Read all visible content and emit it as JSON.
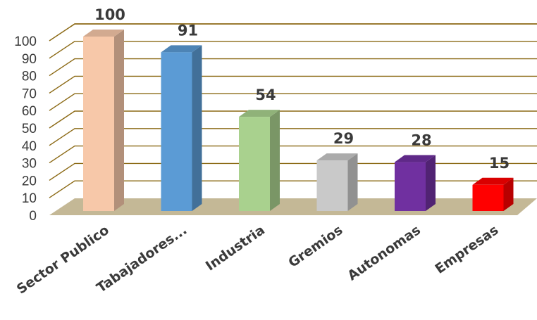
{
  "chart_data": {
    "type": "bar",
    "style": "3d-column",
    "categories": [
      "Sector Publico",
      "Tabajadores...",
      "Industria",
      "Gremios",
      "Autonomas",
      "Empresas"
    ],
    "values": [
      100,
      91,
      54,
      29,
      28,
      15
    ],
    "data_labels": [
      "100",
      "91",
      "54",
      "29",
      "28",
      "15"
    ],
    "colors": [
      "#f7c8a9",
      "#5b9bd5",
      "#a9d18e",
      "#c9c9c9",
      "#7030a0",
      "#ff0000"
    ],
    "ylim": [
      0,
      100
    ],
    "yticks": [
      "0",
      "10",
      "20",
      "30",
      "40",
      "50",
      "60",
      "70",
      "80",
      "90",
      "100"
    ],
    "grid": true,
    "gridline_color": "#8b6914",
    "floor_color": "#c4b896",
    "legend": "none"
  }
}
